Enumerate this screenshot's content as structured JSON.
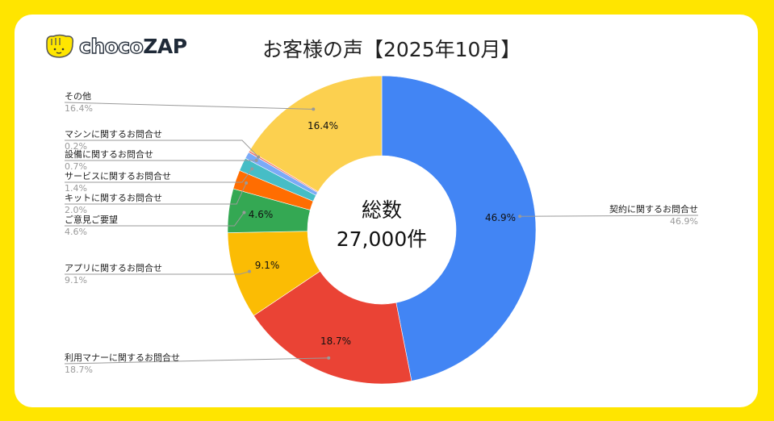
{
  "logo": "chocoZAP",
  "title": "お客様の声【2025年10月】",
  "center": {
    "line1": "総数",
    "line2": "27,000件"
  },
  "chart_data": {
    "type": "pie",
    "donut": true,
    "title": "お客様の声【2025年10月】",
    "unit": "%",
    "slices": [
      {
        "label": "契約に関するお問合せ",
        "value": 46.9,
        "color": "#4285F4"
      },
      {
        "label": "利用マナーに関するお問合せ",
        "value": 18.7,
        "color": "#EA4335"
      },
      {
        "label": "アプリに関するお問合せ",
        "value": 9.1,
        "color": "#FBBC04"
      },
      {
        "label": "ご意見ご要望",
        "value": 4.6,
        "color": "#34A853"
      },
      {
        "label": "キットに関するお問合せ",
        "value": 2.0,
        "color": "#FF6D01"
      },
      {
        "label": "サービスに関するお問合せ",
        "value": 1.4,
        "color": "#46BDC6"
      },
      {
        "label": "設備に関するお問合せ",
        "value": 0.7,
        "color": "#7BAAF7"
      },
      {
        "label": "マシンに関するお問合せ",
        "value": 0.2,
        "color": "#F07B72"
      },
      {
        "label": "その他",
        "value": 16.4,
        "color": "#FCD04F"
      }
    ],
    "total_label": "総数 27,000件"
  }
}
